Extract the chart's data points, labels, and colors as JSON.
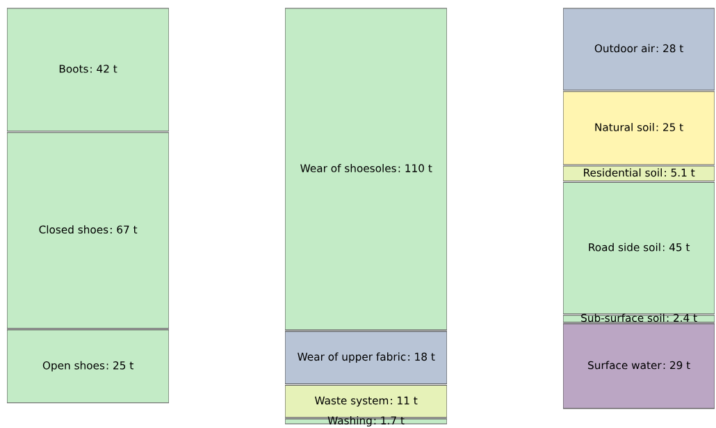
{
  "chart_data": [
    {
      "type": "other",
      "data_labels": true,
      "categories": [
        "Boots",
        "Closed shoes",
        "Open shoes"
      ],
      "values": [
        42,
        67,
        25
      ],
      "value_labels": [
        ": 42 t",
        ": 67 t",
        ": 25 t"
      ],
      "colors": [
        "#c3ebc6",
        "#c3ebc6",
        "#c3ebc6"
      ]
    },
    {
      "type": "other",
      "data_labels": true,
      "categories": [
        "Wear of shoesoles",
        "Wear of upper fabric",
        "Waste system",
        "Washing"
      ],
      "values": [
        110,
        18,
        11,
        1.7
      ],
      "value_labels": [
        ": 110 t",
        ": 18 t",
        ": 11 t",
        ": 1.7 t"
      ],
      "colors": [
        "#c3ebc6",
        "#b8c4d6",
        "#e6f2b8",
        "#c3ebc6"
      ]
    },
    {
      "type": "other",
      "data_labels": true,
      "categories": [
        "Outdoor air",
        "Natural soil",
        "Residential soil",
        "Road side soil",
        "Sub-surface soil",
        "Surface water"
      ],
      "values": [
        28,
        25,
        5.1,
        45,
        2.4,
        29
      ],
      "value_labels": [
        ": 28 t",
        ": 25 t",
        ": 5.1 t",
        ": 45 t",
        ": 2.4 t",
        ": 29 t"
      ],
      "colors": [
        "#b8c4d6",
        "#fff5b0",
        "#e6f2b8",
        "#c3ebc6",
        "#c3ebc6",
        "#bba6c4"
      ]
    }
  ]
}
